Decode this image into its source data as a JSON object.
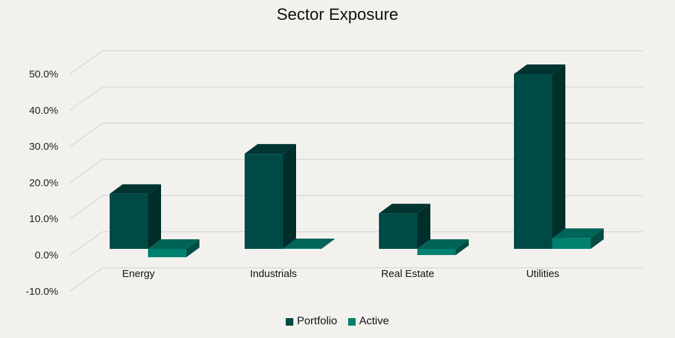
{
  "chart_data": {
    "type": "bar",
    "title": "Sector Exposure",
    "categories": [
      "Energy",
      "Industrials",
      "Real Estate",
      "Utilities"
    ],
    "series": [
      {
        "name": "Portfolio",
        "values": [
          15.2,
          26.3,
          9.8,
          48.3
        ],
        "color": "#004a45"
      },
      {
        "name": "Active",
        "values": [
          -2.3,
          0.2,
          -1.7,
          3.0
        ],
        "color": "#00806f"
      }
    ],
    "xlabel": "",
    "ylabel": "",
    "yticks": [
      "-10.0%",
      "0.0%",
      "10.0%",
      "20.0%",
      "30.0%",
      "40.0%",
      "50.0%"
    ],
    "ylim": [
      -10,
      50
    ],
    "grid": true,
    "legend_position": "bottom",
    "style": "3D clustered column"
  },
  "legend": [
    {
      "label": "Portfolio",
      "color": "#004a45"
    },
    {
      "label": "Active",
      "color": "#00806f"
    }
  ]
}
